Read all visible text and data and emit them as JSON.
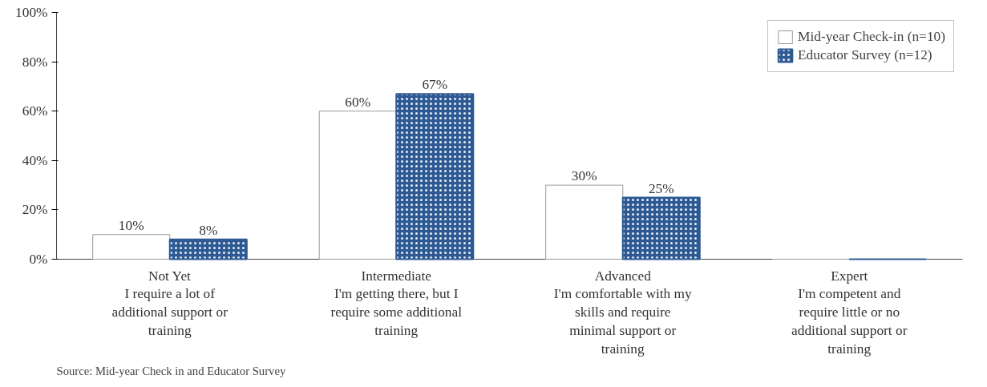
{
  "chart_data": {
    "type": "bar",
    "categories": [
      "Not Yet\nI require a lot of\nadditional support or\ntraining",
      "Intermediate\nI'm getting there, but I\nrequire some additional\ntraining",
      "Advanced\nI'm comfortable with my\nskills and require\nminimal support or\ntraining",
      "Expert\nI'm competent and\nrequire little or no\nadditional support or\ntraining"
    ],
    "series": [
      {
        "name": "Mid-year Check-in (n=10)",
        "color": "#ffffff",
        "values": [
          10,
          60,
          30,
          null
        ],
        "value_labels": [
          "10%",
          "60%",
          "30%",
          null
        ]
      },
      {
        "name": "Educator Survey (n=12)",
        "color": "#2e5a94",
        "values": [
          8,
          67,
          25,
          0
        ],
        "value_labels": [
          "8%",
          "67%",
          "25%",
          null
        ]
      }
    ],
    "ylim": [
      0,
      100
    ],
    "yticks": [
      {
        "value": 0,
        "label": "0%"
      },
      {
        "value": 20,
        "label": "20%"
      },
      {
        "value": 40,
        "label": "40%"
      },
      {
        "value": 60,
        "label": "60%"
      },
      {
        "value": 80,
        "label": "80%"
      },
      {
        "value": 100,
        "label": "100%"
      }
    ],
    "grid": false,
    "legend": "top right",
    "annotations": [
      "Source:  Mid-year Check in and Educator Survey"
    ]
  }
}
